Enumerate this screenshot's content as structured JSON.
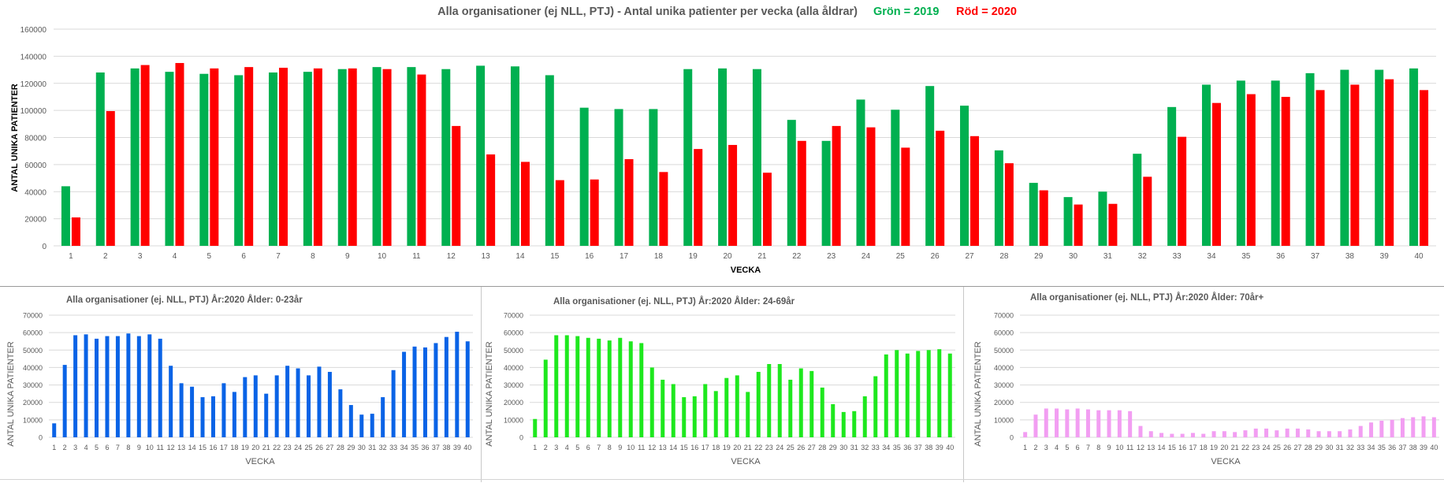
{
  "header": {
    "title": "Alla organisationer (ej NLL,  PTJ)   -   Antal unika patienter per vecka (alla åldrar)",
    "legend_green": "Grön = 2019",
    "legend_red": "Röd = 2020"
  },
  "colors": {
    "green_2019": "#00b050",
    "red_2020": "#ff0000",
    "age_0_23": "#0a63e6",
    "age_24_69": "#1ee81e",
    "age_70_plus": "#f29ef2",
    "grid": "#d9d9d9",
    "axis_text": "#595959"
  },
  "chart_data": [
    {
      "type": "bar",
      "title": "Alla organisationer (ej NLL,  PTJ)   -   Antal unika patienter per vecka (alla åldrar)",
      "xlabel": "VECKA",
      "ylabel": "ANTAL UNIKA PATIENTER",
      "ylim": [
        0,
        160000
      ],
      "yticks": [
        "0",
        "20000",
        "40000",
        "60000",
        "80000",
        "100000",
        "120000",
        "140000",
        "160000"
      ],
      "grid": true,
      "categories": [
        "1",
        "2",
        "3",
        "4",
        "5",
        "6",
        "7",
        "8",
        "9",
        "10",
        "11",
        "12",
        "13",
        "14",
        "15",
        "16",
        "17",
        "18",
        "19",
        "20",
        "21",
        "22",
        "23",
        "24",
        "25",
        "26",
        "27",
        "28",
        "29",
        "30",
        "31",
        "32",
        "33",
        "34",
        "35",
        "36",
        "37",
        "38",
        "39",
        "40"
      ],
      "series": [
        {
          "name": "2019",
          "values": [
            44000,
            128000,
            131000,
            128500,
            127000,
            126000,
            128000,
            128500,
            130500,
            132000,
            132000,
            130500,
            133000,
            132500,
            126000,
            102000,
            101000,
            101000,
            130500,
            131000,
            130500,
            93000,
            77500,
            108000,
            100500,
            118000,
            103500,
            70500,
            46500,
            36000,
            40000,
            68000,
            102500,
            119000,
            122000,
            122000,
            127500,
            130000,
            130000,
            131000
          ]
        },
        {
          "name": "2020",
          "values": [
            21000,
            99500,
            133500,
            135000,
            131000,
            132000,
            131500,
            131000,
            131000,
            130500,
            126500,
            88500,
            67500,
            62000,
            48500,
            49000,
            64000,
            54500,
            71500,
            74500,
            54000,
            77500,
            88500,
            87500,
            72500,
            85000,
            81000,
            61000,
            41000,
            30500,
            31000,
            51000,
            80500,
            105500,
            112000,
            110000,
            115000,
            119000,
            123000,
            115000
          ]
        }
      ]
    },
    {
      "type": "bar",
      "title": "Alla organisationer (ej. NLL, PTJ)  År:2020   Ålder: 0-23år",
      "xlabel": "VECKA",
      "ylabel": "ANTAL UNIKA PATIENTER",
      "ylim": [
        0,
        70000
      ],
      "yticks": [
        "0",
        "10000",
        "20000",
        "30000",
        "40000",
        "50000",
        "60000",
        "70000"
      ],
      "grid": true,
      "categories": [
        "1",
        "2",
        "3",
        "4",
        "5",
        "6",
        "7",
        "8",
        "9",
        "10",
        "11",
        "12",
        "13",
        "14",
        "15",
        "16",
        "17",
        "18",
        "19",
        "20",
        "21",
        "22",
        "23",
        "24",
        "25",
        "26",
        "27",
        "28",
        "29",
        "30",
        "31",
        "32",
        "33",
        "34",
        "35",
        "36",
        "37",
        "38",
        "39",
        "40"
      ],
      "series": [
        {
          "name": "0-23år",
          "values": [
            8000,
            41500,
            58500,
            59000,
            56500,
            58000,
            58000,
            59500,
            58000,
            59000,
            56500,
            41000,
            31000,
            29000,
            23000,
            23500,
            31000,
            26000,
            34500,
            35500,
            25000,
            35500,
            41000,
            39500,
            35500,
            40500,
            37500,
            27500,
            18500,
            13000,
            13500,
            23000,
            38500,
            49000,
            52000,
            51500,
            54000,
            57500,
            60500,
            55000
          ]
        }
      ]
    },
    {
      "type": "bar",
      "title": "Alla organisationer (ej. NLL, PTJ)  År:2020   Ålder: 24-69år",
      "xlabel": "VECKA",
      "ylabel": "ANTAL UNIKA PATIENTER",
      "ylim": [
        0,
        70000
      ],
      "yticks": [
        "0",
        "10000",
        "20000",
        "30000",
        "40000",
        "50000",
        "60000",
        "70000"
      ],
      "grid": true,
      "categories": [
        "1",
        "2",
        "3",
        "4",
        "5",
        "6",
        "7",
        "8",
        "9",
        "10",
        "11",
        "12",
        "13",
        "14",
        "15",
        "16",
        "17",
        "18",
        "19",
        "20",
        "21",
        "22",
        "23",
        "24",
        "25",
        "26",
        "27",
        "28",
        "29",
        "30",
        "31",
        "32",
        "33",
        "34",
        "35",
        "36",
        "37",
        "38",
        "39",
        "40"
      ],
      "series": [
        {
          "name": "24-69år",
          "values": [
            10500,
            44500,
            58500,
            58500,
            58000,
            57000,
            56500,
            55500,
            57000,
            55000,
            54000,
            40000,
            33000,
            30500,
            23000,
            23500,
            30500,
            26500,
            34000,
            35500,
            26000,
            37500,
            42000,
            42000,
            33000,
            39500,
            38000,
            28500,
            19000,
            14500,
            15000,
            23500,
            35000,
            47500,
            50000,
            48000,
            49500,
            50000,
            50500,
            48000
          ]
        }
      ]
    },
    {
      "type": "bar",
      "title": "Alla organisationer (ej. NLL, PTJ)  År:2020   Ålder: 70år+",
      "xlabel": "VECKA",
      "ylabel": "ANTAL UNIKA PATIENTER",
      "ylim": [
        0,
        70000
      ],
      "yticks": [
        "0",
        "10000",
        "20000",
        "30000",
        "40000",
        "50000",
        "60000",
        "70000"
      ],
      "grid": true,
      "categories": [
        "1",
        "2",
        "3",
        "4",
        "5",
        "6",
        "7",
        "8",
        "9",
        "10",
        "11",
        "12",
        "13",
        "14",
        "15",
        "16",
        "17",
        "18",
        "19",
        "20",
        "21",
        "22",
        "23",
        "24",
        "25",
        "26",
        "27",
        "28",
        "29",
        "30",
        "31",
        "32",
        "33",
        "34",
        "35",
        "36",
        "37",
        "38",
        "39",
        "40"
      ],
      "series": [
        {
          "name": "70år+",
          "values": [
            3000,
            13000,
            16500,
            16500,
            16000,
            16500,
            16000,
            15500,
            15500,
            15500,
            15000,
            6500,
            3500,
            2500,
            2000,
            2000,
            2500,
            2000,
            3500,
            3500,
            3000,
            4000,
            5000,
            5000,
            4000,
            5000,
            5000,
            4500,
            3500,
            3500,
            3500,
            4500,
            6500,
            8500,
            9500,
            10000,
            11000,
            11500,
            12000,
            11500
          ]
        }
      ]
    }
  ]
}
